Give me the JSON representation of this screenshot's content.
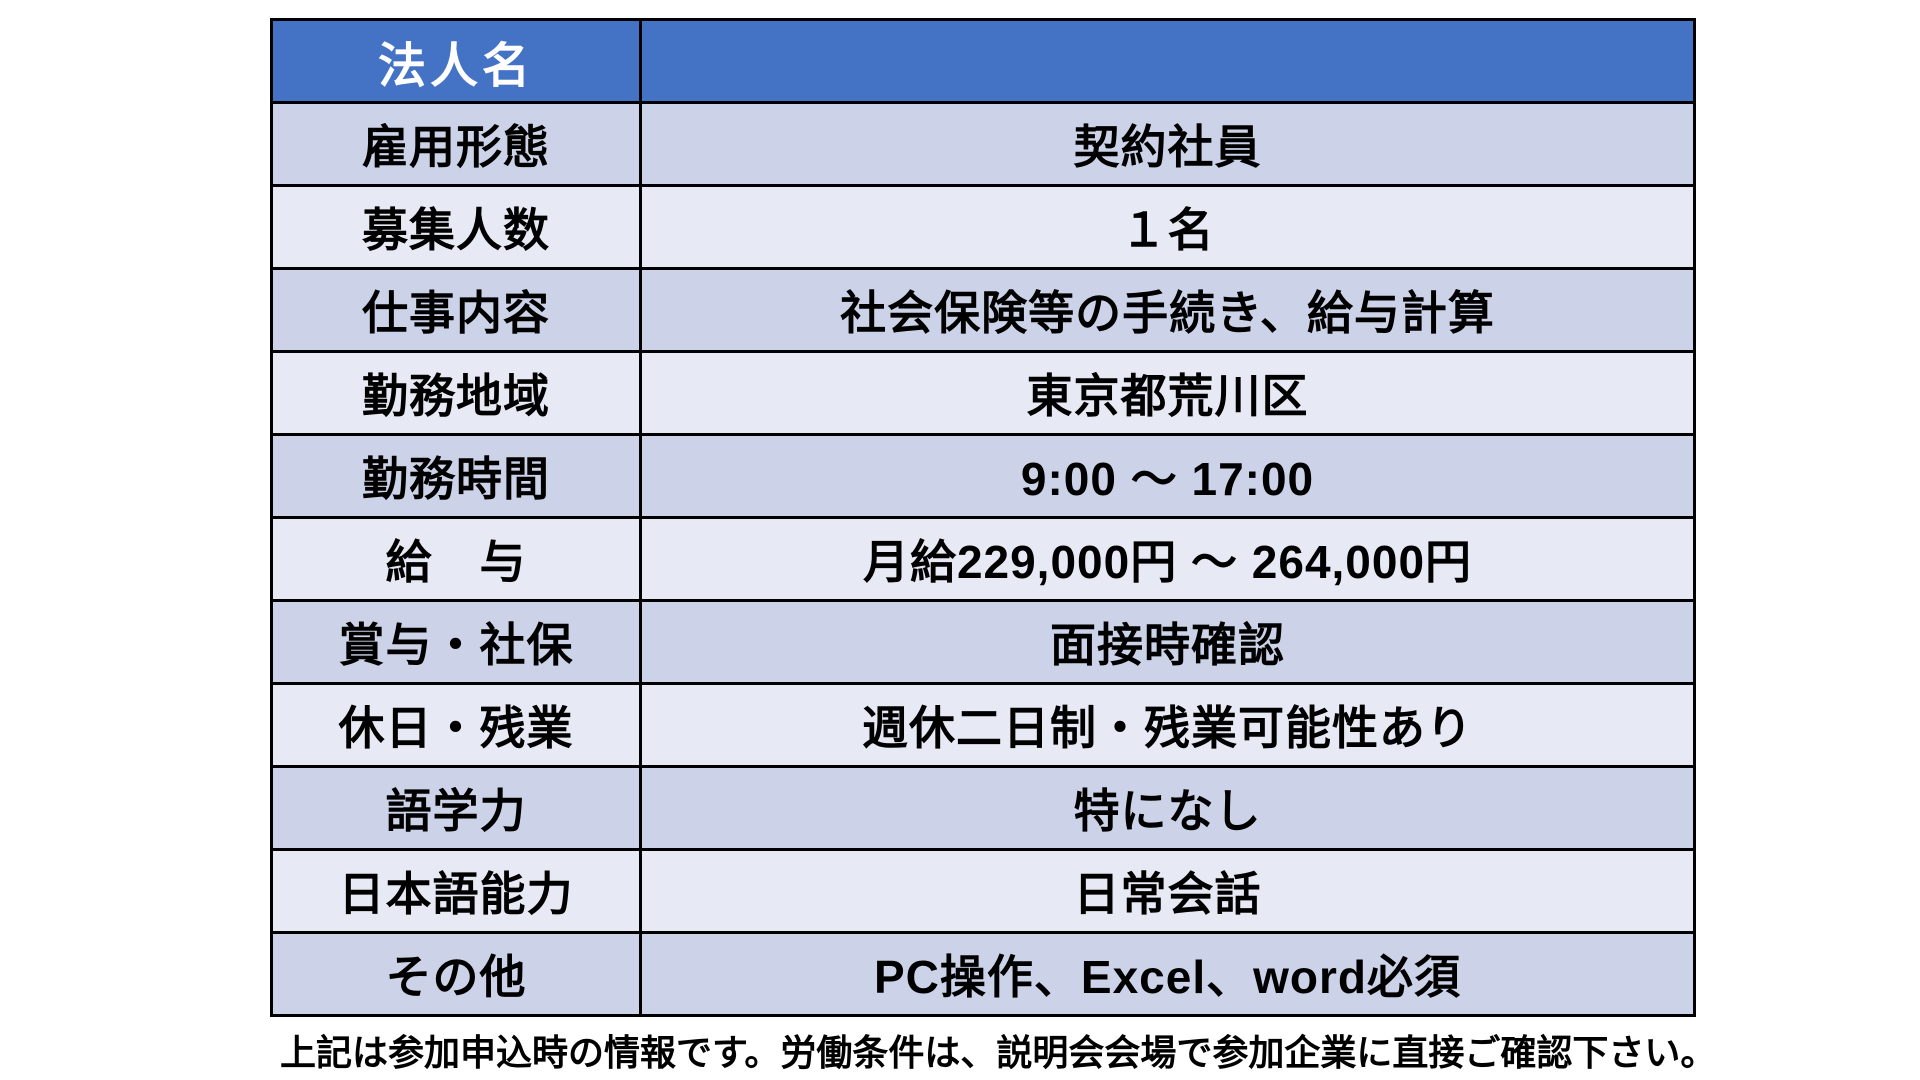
{
  "colors": {
    "page_bg": "#FFFFFF",
    "header_bg": "#4472C4",
    "header_text": "#FFFFFF",
    "row_dark_bg": "#CCD3E8",
    "row_light_bg": "#E7EAF4",
    "border": "#000000",
    "body_text": "#000000"
  },
  "table": {
    "header_row": {
      "label": "法人名",
      "value": ""
    },
    "rows": [
      {
        "label": "雇用形態",
        "value": "契約社員"
      },
      {
        "label": "募集人数",
        "value": "１名"
      },
      {
        "label": "仕事内容",
        "value": "社会保険等の手続き、給与計算"
      },
      {
        "label": "勤務地域",
        "value": "東京都荒川区"
      },
      {
        "label": "勤務時間",
        "value": "9:00 ～ 17:00"
      },
      {
        "label": "給　与",
        "value": "月給229,000円 ～ 264,000円"
      },
      {
        "label": "賞与・社保",
        "value": "面接時確認"
      },
      {
        "label": "休日・残業",
        "value": "週休二日制・残業可能性あり"
      },
      {
        "label": "語学力",
        "value": "特になし"
      },
      {
        "label": "日本語能力",
        "value": "日常会話"
      },
      {
        "label": "その他",
        "value": "PC操作、Excel、word必須"
      }
    ]
  },
  "footer": {
    "note": "上記は参加申込時の情報です。労働条件は、説明会会場で参加企業に直接ご確認下さい。"
  }
}
